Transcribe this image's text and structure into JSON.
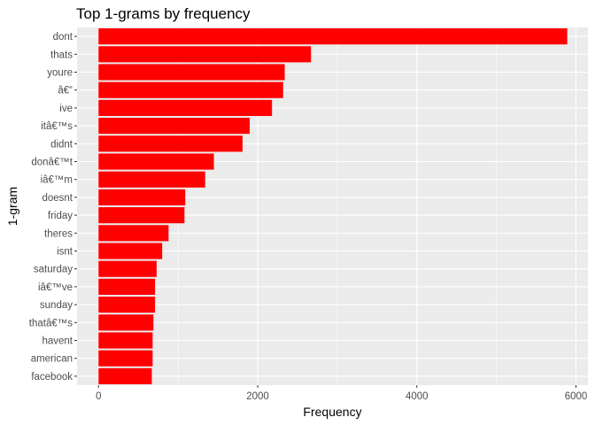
{
  "chart_data": {
    "type": "bar",
    "orientation": "horizontal",
    "title": "Top 1-grams by frequency",
    "xlabel": "Frequency",
    "ylabel": "1-gram",
    "categories": [
      "dont",
      "thats",
      "youre",
      "â€“",
      "ive",
      "itâ€™s",
      "didnt",
      "donâ€™t",
      "iâ€™m",
      "doesnt",
      "friday",
      "theres",
      "isnt",
      "saturday",
      "iâ€™ve",
      "sunday",
      "thatâ€™s",
      "havent",
      "american",
      "facebook"
    ],
    "values": [
      5890,
      2670,
      2340,
      2320,
      2180,
      1900,
      1810,
      1450,
      1340,
      1090,
      1080,
      880,
      800,
      730,
      710,
      710,
      690,
      680,
      680,
      670
    ],
    "xlim": [
      -270,
      6150
    ],
    "x_ticks": [
      0,
      2000,
      4000,
      6000
    ],
    "x_tick_labels": [
      "0",
      "2000",
      "4000",
      "6000"
    ],
    "bar_color": "#ff0000",
    "panel_background": "#ebebeb",
    "grid": true,
    "legend": "none"
  }
}
